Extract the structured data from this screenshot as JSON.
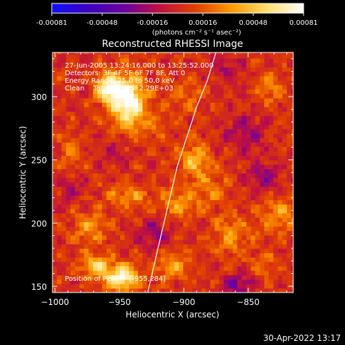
{
  "colorbar": {
    "ticks": [
      "-0.00081",
      "-0.00048",
      "-0.00016",
      "0.00016",
      "0.00048",
      "0.00081"
    ],
    "unit_label": "(photons cm⁻² s⁻¹ asec⁻²)",
    "stops": [
      "#1010ff",
      "#3a00c0",
      "#6a00a0",
      "#c01040",
      "#e04000",
      "#ff9a00",
      "#ffe070",
      "#ffffff"
    ]
  },
  "annotations": {
    "time_range": "27-Jun-2005 13:24:16.000 to 13:25:52.000",
    "detectors": "Detectors: 3F 4F 5F 6F 7F 8F, Att 0",
    "energy": "Energy Range: 25.0 to 50.0 keV",
    "clean": "Clean    Total counts: 2.29E+03",
    "peak": "Position of Peak = [-955,284]"
  },
  "footer": {
    "timestamp": "30-Apr-2022 13:17"
  },
  "chart_data": {
    "type": "heatmap",
    "title": "Reconstructed RHESSI Image",
    "xlabel": "Heliocentric X (arcsec)",
    "ylabel": "Heliocentric Y (arcsec)",
    "xlim": [
      -1002,
      -815
    ],
    "ylim": [
      145,
      335
    ],
    "xticks": [
      -1000,
      -950,
      -900,
      -850
    ],
    "yticks": [
      150,
      200,
      250,
      300
    ],
    "colorscale_range": [
      -0.00081,
      0.00081
    ],
    "peak_position": [
      -955,
      284
    ],
    "limb_curve": [
      [
        -928,
        145
      ],
      [
        -920,
        180
      ],
      [
        -912,
        215
      ],
      [
        -905,
        245
      ],
      [
        -897,
        270
      ],
      [
        -890,
        292
      ],
      [
        -882,
        312
      ],
      [
        -875,
        335
      ]
    ],
    "regions": [
      {
        "x": -945,
        "y": 295,
        "sx": 9,
        "sy": 14,
        "v": 0.00081
      },
      {
        "x": -960,
        "y": 305,
        "sx": 7,
        "sy": 8,
        "v": 0.00065
      },
      {
        "x": -950,
        "y": 155,
        "sx": 9,
        "sy": 7,
        "v": 0.00072
      },
      {
        "x": -970,
        "y": 165,
        "sx": 8,
        "sy": 6,
        "v": 0.00048
      },
      {
        "x": -893,
        "y": 248,
        "sx": 8,
        "sy": 10,
        "v": 0.0004
      },
      {
        "x": -905,
        "y": 215,
        "sx": 10,
        "sy": 8,
        "v": 0.00032
      },
      {
        "x": -945,
        "y": 220,
        "sx": 12,
        "sy": 6,
        "v": 0.00028
      },
      {
        "x": -975,
        "y": 195,
        "sx": 8,
        "sy": 9,
        "v": 0.0003
      },
      {
        "x": -988,
        "y": 255,
        "sx": 6,
        "sy": 9,
        "v": 0.00024
      },
      {
        "x": -910,
        "y": 165,
        "sx": 10,
        "sy": 8,
        "v": 0.0003
      },
      {
        "x": -865,
        "y": 190,
        "sx": 10,
        "sy": 12,
        "v": 0.00026
      },
      {
        "x": -880,
        "y": 225,
        "sx": 9,
        "sy": 9,
        "v": 0.00022
      },
      {
        "x": -835,
        "y": 305,
        "sx": 7,
        "sy": 7,
        "v": 0.00024
      },
      {
        "x": -828,
        "y": 205,
        "sx": 9,
        "sy": 10,
        "v": 0.0003
      },
      {
        "x": -840,
        "y": 165,
        "sx": 7,
        "sy": 7,
        "v": 0.0002
      },
      {
        "x": -900,
        "y": 300,
        "sx": 10,
        "sy": 9,
        "v": 0.00016
      },
      {
        "x": -925,
        "y": 275,
        "sx": 9,
        "sy": 8,
        "v": 0.00012
      },
      {
        "x": -855,
        "y": 270,
        "sx": 12,
        "sy": 10,
        "v": -0.00022
      },
      {
        "x": -840,
        "y": 235,
        "sx": 9,
        "sy": 8,
        "v": -0.0003
      },
      {
        "x": -870,
        "y": 320,
        "sx": 10,
        "sy": 8,
        "v": -0.00018
      },
      {
        "x": -925,
        "y": 190,
        "sx": 9,
        "sy": 9,
        "v": -0.00024
      },
      {
        "x": -860,
        "y": 150,
        "sx": 8,
        "sy": 6,
        "v": -0.00034
      },
      {
        "x": -990,
        "y": 225,
        "sx": 8,
        "sy": 8,
        "v": -0.00018
      },
      {
        "x": -955,
        "y": 255,
        "sx": 9,
        "sy": 8,
        "v": -0.00014
      }
    ]
  }
}
